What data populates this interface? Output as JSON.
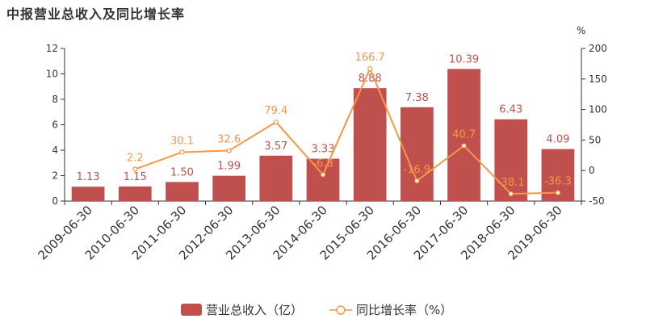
{
  "chart_data": {
    "type": "bar",
    "title": "中报营业总收入及同比增长率",
    "categories": [
      "2009-06-30",
      "2010-06-30",
      "2011-06-30",
      "2012-06-30",
      "2013-06-30",
      "2014-06-30",
      "2015-06-30",
      "2016-06-30",
      "2017-06-30",
      "2018-06-30",
      "2019-06-30"
    ],
    "series": [
      {
        "name": "营业总收入（亿）",
        "type": "bar",
        "axis": "left",
        "color": "#c0504d",
        "values": [
          1.13,
          1.15,
          1.5,
          1.99,
          3.57,
          3.33,
          8.88,
          7.38,
          10.39,
          6.43,
          4.09
        ],
        "labels": [
          "1.13",
          "1.15",
          "1.50",
          "1.99",
          "3.57",
          "3.33",
          "8.88",
          "7.38",
          "10.39",
          "6.43",
          "4.09"
        ]
      },
      {
        "name": "同比增长率（%）",
        "type": "line",
        "axis": "right",
        "color": "#f79646",
        "values": [
          null,
          2.2,
          30.1,
          32.6,
          79.4,
          -6.8,
          166.7,
          -16.9,
          40.7,
          -38.1,
          -36.3
        ],
        "labels": [
          "",
          "2.2",
          "30.1",
          "32.6",
          "79.4",
          "-6.8",
          "166.7",
          "-16.9",
          "40.7",
          "-38.1",
          "-36.3"
        ]
      }
    ],
    "y_left": {
      "min": 0,
      "max": 12,
      "ticks": [
        "0",
        "2",
        "4",
        "6",
        "8",
        "10",
        "12"
      ]
    },
    "y_right": {
      "min": -50,
      "max": 200,
      "unit": "%",
      "ticks": [
        "-50",
        "0",
        "50",
        "100",
        "150",
        "200"
      ]
    },
    "grid": false,
    "legend_position": "bottom"
  }
}
